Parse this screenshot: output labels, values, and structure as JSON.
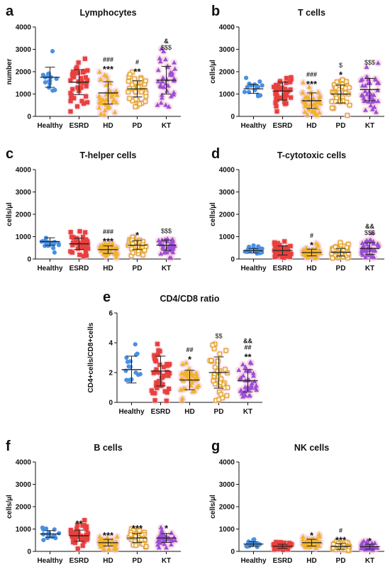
{
  "colors": {
    "Healthy": "#4a90e2",
    "ESRD": "#e8413c",
    "HD": "#f0b429",
    "PD": "#e0a020",
    "KT": "#9b4fd6",
    "halo": "#f4c6d8",
    "axis": "#111111"
  },
  "chart_data": [
    {
      "panel": "a",
      "type": "scatter",
      "title": "Lymphocytes",
      "ylabel": "number",
      "ylim": [
        0,
        4000
      ],
      "yticks": [
        "0",
        "1000",
        "2000",
        "3000",
        "4000"
      ],
      "categories": [
        "Healthy",
        "ESRD",
        "HD",
        "PD",
        "KT"
      ],
      "means": [
        1750,
        1530,
        1050,
        1230,
        1620
      ],
      "sd": [
        450,
        560,
        500,
        360,
        620
      ],
      "n": [
        16,
        40,
        40,
        38,
        38
      ],
      "markers": [
        "circle",
        "square",
        "triangle",
        "square-open",
        "triangle"
      ],
      "annotations": [
        [],
        [],
        [
          "###",
          "***"
        ],
        [
          "#",
          "**"
        ],
        [
          "&",
          "$$$"
        ]
      ]
    },
    {
      "panel": "b",
      "type": "scatter",
      "title": "T cells",
      "ylabel": "cells/µl",
      "ylim": [
        0,
        4000
      ],
      "yticks": [
        "0",
        "1000",
        "2000",
        "3000",
        "4000"
      ],
      "categories": [
        "Healthy",
        "ESRD",
        "HD",
        "PD",
        "KT"
      ],
      "means": [
        1230,
        1130,
        700,
        1000,
        1200
      ],
      "sd": [
        200,
        400,
        350,
        400,
        500
      ],
      "n": [
        16,
        40,
        40,
        38,
        38
      ],
      "markers": [
        "circle",
        "square",
        "triangle",
        "square-open",
        "triangle"
      ],
      "annotations": [
        [],
        [],
        [
          "###",
          "***"
        ],
        [
          "$",
          "*"
        ],
        [
          "$$$"
        ]
      ]
    },
    {
      "panel": "c",
      "type": "scatter",
      "title": "T-helper cells",
      "ylabel": "cells/µl",
      "ylim": [
        0,
        4000
      ],
      "yticks": [
        "0",
        "1000",
        "2000",
        "3000",
        "4000"
      ],
      "categories": [
        "Healthy",
        "ESRD",
        "HD",
        "PD",
        "KT"
      ],
      "means": [
        780,
        680,
        420,
        620,
        620
      ],
      "sd": [
        170,
        250,
        170,
        200,
        230
      ],
      "n": [
        16,
        40,
        40,
        38,
        38
      ],
      "markers": [
        "circle",
        "square",
        "triangle",
        "square-open",
        "triangle"
      ],
      "annotations": [
        [],
        [],
        [
          "###",
          "***"
        ],
        [
          "*"
        ],
        [
          "$$$"
        ]
      ]
    },
    {
      "panel": "d",
      "type": "scatter",
      "title": "T-cytotoxic cells",
      "ylabel": "cells/µl",
      "ylim": [
        0,
        4000
      ],
      "yticks": [
        "0",
        "1000",
        "2000",
        "3000",
        "4000"
      ],
      "categories": [
        "Healthy",
        "ESRD",
        "HD",
        "PD",
        "KT"
      ],
      "means": [
        370,
        380,
        290,
        300,
        470
      ],
      "sd": [
        100,
        200,
        150,
        170,
        260
      ],
      "n": [
        16,
        40,
        40,
        38,
        38
      ],
      "markers": [
        "circle",
        "square",
        "triangle",
        "square-open",
        "triangle"
      ],
      "annotations": [
        [],
        [],
        [
          "#",
          "*"
        ],
        [],
        [
          "&&",
          "$$$"
        ]
      ]
    },
    {
      "panel": "e",
      "type": "scatter",
      "title": "CD4/CD8 ratio",
      "ylabel": "CD4+cells/CD8+cells",
      "ylim": [
        0,
        6
      ],
      "yticks": [
        "0",
        "2",
        "4",
        "6"
      ],
      "categories": [
        "Healthy",
        "ESRD",
        "HD",
        "PD",
        "KT"
      ],
      "means": [
        2.2,
        2.1,
        1.5,
        2.0,
        1.45
      ],
      "sd": [
        0.9,
        1.0,
        0.65,
        1.05,
        0.75
      ],
      "n": [
        16,
        40,
        40,
        38,
        38
      ],
      "markers": [
        "circle",
        "square",
        "triangle",
        "square-open",
        "triangle"
      ],
      "annotations": [
        [],
        [],
        [
          "##",
          "*"
        ],
        [
          "$$"
        ],
        [
          "&&",
          "##",
          "**"
        ]
      ]
    },
    {
      "panel": "f",
      "type": "scatter",
      "title": "B cells",
      "ylabel": "cells/µl",
      "ylim": [
        0,
        4000
      ],
      "yticks": [
        "0",
        "1000",
        "2000",
        "3000",
        "4000"
      ],
      "categories": [
        "Healthy",
        "ESRD",
        "HD",
        "PD",
        "KT"
      ],
      "means": [
        780,
        700,
        390,
        600,
        600
      ],
      "sd": [
        150,
        250,
        150,
        200,
        200
      ],
      "n": [
        16,
        40,
        40,
        38,
        38
      ],
      "markers": [
        "circle",
        "square",
        "triangle",
        "square-open",
        "triangle"
      ],
      "annotations": [
        [],
        [
          "**"
        ],
        [
          "***"
        ],
        [
          "***"
        ],
        [
          "*"
        ]
      ]
    },
    {
      "panel": "g",
      "type": "scatter",
      "title": "NK cells",
      "ylabel": "cells/µl",
      "ylim": [
        0,
        4000
      ],
      "yticks": [
        "0",
        "1000",
        "2000",
        "3000",
        "4000"
      ],
      "categories": [
        "Healthy",
        "ESRD",
        "HD",
        "PD",
        "KT"
      ],
      "means": [
        330,
        230,
        390,
        220,
        210
      ],
      "sd": [
        100,
        90,
        150,
        130,
        110
      ],
      "n": [
        16,
        40,
        40,
        38,
        38
      ],
      "markers": [
        "circle",
        "square",
        "triangle",
        "square-open",
        "triangle"
      ],
      "annotations": [
        [],
        [],
        [
          "*"
        ],
        [
          "#",
          "***"
        ],
        [
          "*"
        ]
      ]
    }
  ]
}
